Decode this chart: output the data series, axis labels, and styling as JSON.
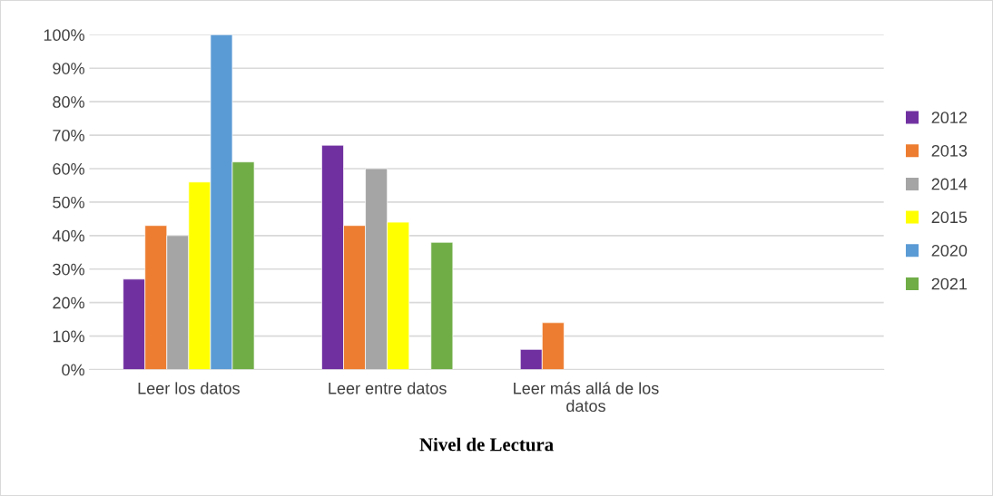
{
  "chart_data": {
    "type": "bar",
    "xlabel": "Nivel de Lectura",
    "categories": [
      "Leer los datos",
      "Leer entre datos",
      "Leer más allá de los\ndatos",
      null
    ],
    "series": [
      {
        "name": "2012",
        "color": "#7030a0",
        "values": [
          27,
          67,
          6,
          null
        ]
      },
      {
        "name": "2013",
        "color": "#ed7d31",
        "values": [
          43,
          43,
          14,
          null
        ]
      },
      {
        "name": "2014",
        "color": "#a5a5a5",
        "values": [
          40,
          60,
          null,
          null
        ]
      },
      {
        "name": "2015",
        "color": "#ffff00",
        "values": [
          56,
          44,
          null,
          null
        ]
      },
      {
        "name": "2020",
        "color": "#5b9bd5",
        "values": [
          100,
          null,
          null,
          null
        ]
      },
      {
        "name": "2021",
        "color": "#70ad47",
        "values": [
          62,
          38,
          null,
          null
        ]
      }
    ],
    "ylim": [
      0,
      100
    ],
    "yticks": [
      {
        "value": 0,
        "label": "0%"
      },
      {
        "value": 10,
        "label": "10%"
      },
      {
        "value": 20,
        "label": "20%"
      },
      {
        "value": 30,
        "label": "30%"
      },
      {
        "value": 40,
        "label": "40%"
      },
      {
        "value": 50,
        "label": "50%"
      },
      {
        "value": 60,
        "label": "60%"
      },
      {
        "value": 70,
        "label": "70%"
      },
      {
        "value": 80,
        "label": "80%"
      },
      {
        "value": 90,
        "label": "90%"
      },
      {
        "value": 100,
        "label": "100%"
      }
    ],
    "grid": "y",
    "legend": "right"
  }
}
